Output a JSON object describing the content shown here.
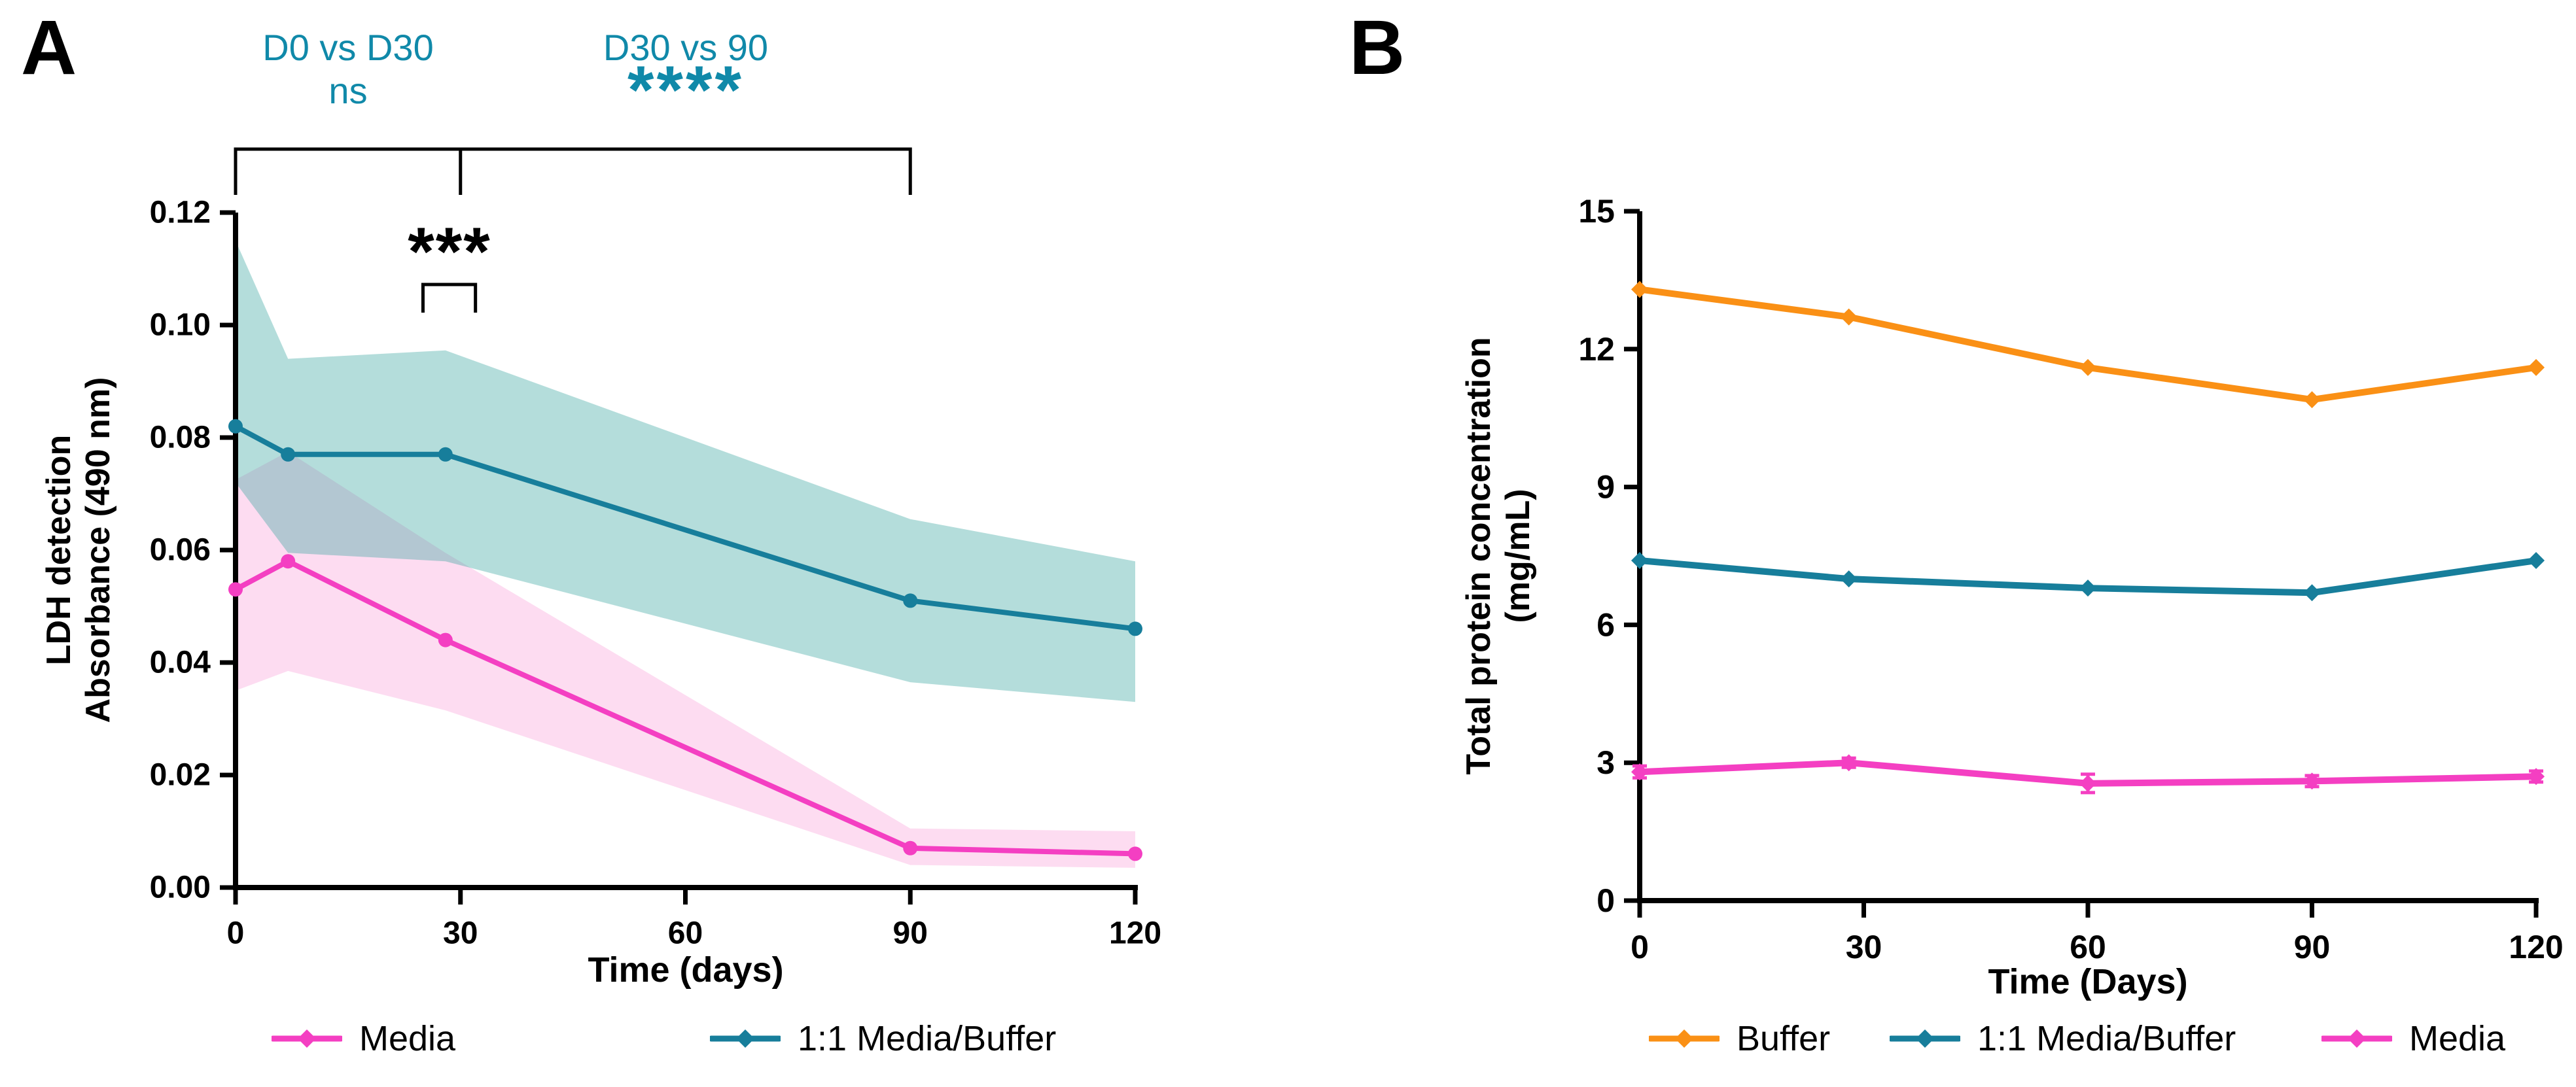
{
  "figure": {
    "panel_a": {
      "panel_label": "A",
      "x_axis_title": "Time (days)",
      "y_axis_title_line1": "LDH detection",
      "y_axis_title_line2": "Absorbance (490 nm)"
    },
    "panel_b": {
      "panel_label": "B",
      "x_axis_title": "Time (Days)",
      "y_axis_title_line1": "Total protein concentration",
      "y_axis_title_line2": "(mg/mL)"
    },
    "colors": {
      "media_pink": "#F43FC2",
      "media_buffer_teal": "#177E9B",
      "buffer_orange": "#FA9015",
      "annotation_teal": "#1089A9",
      "band_pink": "rgba(246,63,178,0.18)",
      "band_teal": "rgba(58,166,160,0.38)",
      "axis_black": "#000000"
    }
  },
  "chart_data": [
    {
      "type": "line",
      "title": "",
      "xlabel": "Time (days)",
      "ylabel": "LDH detection Absorbance (490 nm)",
      "x": [
        0,
        7,
        28,
        90,
        120
      ],
      "xticks": [
        0,
        30,
        60,
        90,
        120
      ],
      "xtick_labels": [
        "0",
        "30",
        "60",
        "90",
        "120"
      ],
      "xlim": [
        0,
        120
      ],
      "ylim": [
        0,
        0.12
      ],
      "yticks": [
        0,
        0.02,
        0.04,
        0.06,
        0.08,
        0.1,
        0.12
      ],
      "ytick_labels": [
        "0.00",
        "0.02",
        "0.04",
        "0.06",
        "0.08",
        "0.10",
        "0.12"
      ],
      "grid": false,
      "legend_position": "bottom",
      "series": [
        {
          "name": "Media",
          "color": "#F43FC2",
          "band_color": "rgba(246,63,178,0.18)",
          "values": [
            0.053,
            0.058,
            0.044,
            0.007,
            0.006
          ],
          "band_upper": [
            0.0725,
            0.0775,
            0.0595,
            0.0105,
            0.01
          ],
          "band_lower": [
            0.035,
            0.0385,
            0.0315,
            0.004,
            0.0035
          ]
        },
        {
          "name": "1:1 Media/Buffer",
          "color": "#177E9B",
          "band_color": "rgba(58,166,160,0.38)",
          "values": [
            0.082,
            0.077,
            0.077,
            0.051,
            0.046
          ],
          "band_upper": [
            0.115,
            0.094,
            0.0955,
            0.0655,
            0.058
          ],
          "band_lower": [
            0.072,
            0.0595,
            0.058,
            0.0365,
            0.033
          ]
        }
      ],
      "annotations": {
        "comparisons": [
          {
            "label": "D0 vs D30",
            "significance": "ns",
            "from_day": 0,
            "to_day": 30
          },
          {
            "label": "D30 vs 90",
            "significance": "****",
            "from_day": 30,
            "to_day": 90
          }
        ],
        "pointwise": {
          "significance": "***",
          "from_day": 25,
          "to_day": 32
        }
      }
    },
    {
      "type": "line",
      "title": "",
      "xlabel": "Time (Days)",
      "ylabel": "Total protein concentration (mg/mL)",
      "x": [
        0,
        28,
        60,
        90,
        120
      ],
      "xticks": [
        0,
        30,
        60,
        90,
        120
      ],
      "xtick_labels": [
        "0",
        "30",
        "60",
        "90",
        "120"
      ],
      "xlim": [
        0,
        120
      ],
      "ylim": [
        0,
        15
      ],
      "yticks": [
        0,
        3,
        6,
        9,
        12,
        15
      ],
      "ytick_labels": [
        "0",
        "3",
        "6",
        "9",
        "12",
        "15"
      ],
      "grid": false,
      "legend_position": "bottom",
      "series": [
        {
          "name": "Buffer",
          "color": "#FA9015",
          "values": [
            13.3,
            12.7,
            11.6,
            10.9,
            11.6
          ]
        },
        {
          "name": "1:1 Media/Buffer",
          "color": "#177E9B",
          "values": [
            7.4,
            7.0,
            6.8,
            6.7,
            7.4
          ]
        },
        {
          "name": "Media",
          "color": "#F43FC2",
          "values": [
            2.8,
            3.0,
            2.55,
            2.6,
            2.7
          ],
          "yerr": [
            0.13,
            0.1,
            0.2,
            0.12,
            0.12
          ]
        }
      ]
    }
  ]
}
